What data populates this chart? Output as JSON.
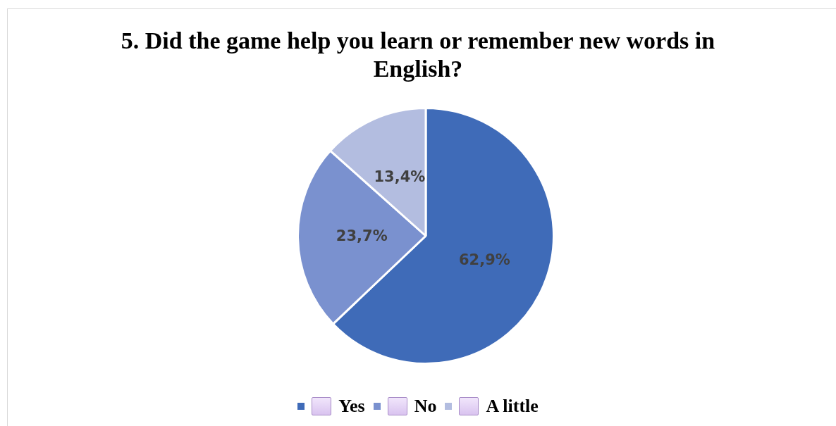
{
  "chart_data": {
    "type": "pie",
    "title": "5. Did the game help you learn or remember new words in English?",
    "categories": [
      "Yes",
      "No",
      "A little"
    ],
    "values": [
      62.9,
      23.7,
      13.4
    ],
    "value_labels": [
      "62,9%",
      "23,7%",
      "13,4%"
    ],
    "colors": [
      "#3f6bb8",
      "#7a91cf",
      "#b3bde0"
    ],
    "legend": "bottom"
  }
}
